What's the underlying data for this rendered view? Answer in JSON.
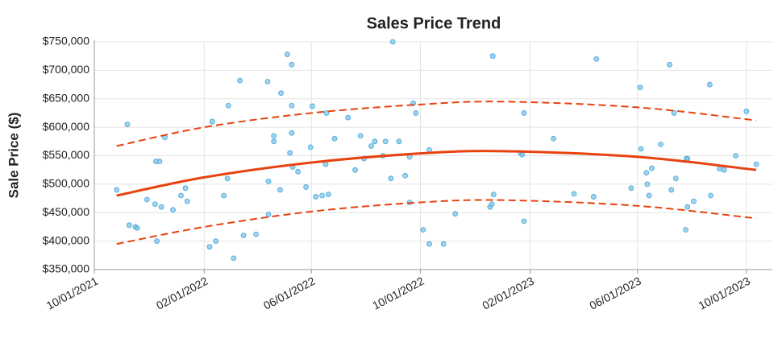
{
  "chart_data": {
    "type": "scatter",
    "title": "Sales Price Trend",
    "y_label": "Sale Price ($)",
    "grid": true,
    "xlim": [
      "2021-10-01",
      "2023-10-30"
    ],
    "xticks": [
      {
        "value": "2021-10-01",
        "label": "10/01/2021"
      },
      {
        "value": "2022-02-01",
        "label": "02/01/2022"
      },
      {
        "value": "2022-06-01",
        "label": "06/01/2022"
      },
      {
        "value": "2022-10-01",
        "label": "10/01/2022"
      },
      {
        "value": "2023-02-01",
        "label": "02/01/2023"
      },
      {
        "value": "2023-06-01",
        "label": "06/01/2023"
      },
      {
        "value": "2023-10-01",
        "label": "10/01/2023"
      }
    ],
    "ylim": [
      350000,
      750000
    ],
    "yticks": [
      {
        "value": 350000,
        "label": "$350,000"
      },
      {
        "value": 400000,
        "label": "$400,000"
      },
      {
        "value": 450000,
        "label": "$450,000"
      },
      {
        "value": 500000,
        "label": "$500,000"
      },
      {
        "value": 550000,
        "label": "$550,000"
      },
      {
        "value": 600000,
        "label": "$600,000"
      },
      {
        "value": 650000,
        "label": "$650,000"
      },
      {
        "value": 700000,
        "label": "$700,000"
      },
      {
        "value": 750000,
        "label": "$750,000"
      }
    ],
    "series": [
      {
        "type": "scatter",
        "color": "#7cc4ea",
        "x": [
          "2021-10-26",
          "2021-11-07",
          "2021-11-09",
          "2021-11-16",
          "2021-11-18",
          "2021-11-29",
          "2021-12-08",
          "2021-12-09",
          "2021-12-10",
          "2021-12-13",
          "2021-12-15",
          "2021-12-19",
          "2021-12-28",
          "2022-01-06",
          "2022-01-11",
          "2022-01-13",
          "2022-02-07",
          "2022-02-10",
          "2022-02-14",
          "2022-02-23",
          "2022-02-27",
          "2022-02-28",
          "2022-03-06",
          "2022-03-13",
          "2022-03-17",
          "2022-03-31",
          "2022-04-13",
          "2022-04-14",
          "2022-04-14",
          "2022-04-20",
          "2022-04-20",
          "2022-04-27",
          "2022-04-28",
          "2022-05-05",
          "2022-05-08",
          "2022-05-10",
          "2022-05-10",
          "2022-05-10",
          "2022-05-11",
          "2022-05-17",
          "2022-05-26",
          "2022-05-31",
          "2022-06-02",
          "2022-06-06",
          "2022-06-13",
          "2022-06-17",
          "2022-06-18",
          "2022-06-20",
          "2022-06-27",
          "2022-07-12",
          "2022-07-20",
          "2022-07-26",
          "2022-07-30",
          "2022-08-07",
          "2022-08-11",
          "2022-08-20",
          "2022-08-23",
          "2022-08-29",
          "2022-08-31",
          "2022-09-07",
          "2022-09-14",
          "2022-09-19",
          "2022-09-19",
          "2022-09-23",
          "2022-09-26",
          "2022-10-04",
          "2022-10-11",
          "2022-10-11",
          "2022-10-27",
          "2022-11-09",
          "2022-12-18",
          "2022-12-20",
          "2022-12-21",
          "2022-12-22",
          "2023-01-21",
          "2023-01-23",
          "2023-01-25",
          "2023-01-25",
          "2023-02-27",
          "2023-03-22",
          "2023-04-13",
          "2023-04-16",
          "2023-05-25",
          "2023-06-04",
          "2023-06-05",
          "2023-06-11",
          "2023-06-12",
          "2023-06-14",
          "2023-06-17",
          "2023-06-27",
          "2023-07-07",
          "2023-07-09",
          "2023-07-12",
          "2023-07-14",
          "2023-07-25",
          "2023-07-26",
          "2023-07-27",
          "2023-07-27",
          "2023-08-03",
          "2023-08-21",
          "2023-08-22",
          "2023-09-01",
          "2023-09-06",
          "2023-09-19",
          "2023-10-01",
          "2023-10-12"
        ],
        "values": [
          490000,
          605000,
          428000,
          425000,
          423000,
          473000,
          465000,
          540000,
          400000,
          540000,
          460000,
          582000,
          455000,
          480000,
          493000,
          470000,
          390000,
          610000,
          400000,
          480000,
          510000,
          638000,
          370000,
          682000,
          410000,
          412000,
          680000,
          447000,
          505000,
          585000,
          575000,
          490000,
          660000,
          728000,
          555000,
          710000,
          638000,
          590000,
          530000,
          522000,
          495000,
          565000,
          637000,
          478000,
          480000,
          535000,
          625000,
          482000,
          580000,
          617000,
          525000,
          585000,
          545000,
          567000,
          575000,
          550000,
          575000,
          510000,
          750000,
          575000,
          515000,
          548000,
          468000,
          642000,
          625000,
          420000,
          560000,
          395000,
          395000,
          448000,
          460000,
          465000,
          725000,
          482000,
          555000,
          552000,
          625000,
          435000,
          580000,
          483000,
          478000,
          720000,
          493000,
          670000,
          562000,
          520000,
          500000,
          480000,
          528000,
          570000,
          710000,
          490000,
          625000,
          510000,
          420000,
          545000,
          460000,
          545000,
          470000,
          675000,
          480000,
          527000,
          525000,
          550000,
          628000,
          535000
        ]
      },
      {
        "type": "line",
        "color": "#e8420f",
        "line_style": "solid",
        "x": [
          "2021-10-26",
          "2022-02-01",
          "2022-06-01",
          "2022-10-01",
          "2023-01-01",
          "2023-06-01",
          "2023-10-12"
        ],
        "values": [
          480000,
          512000,
          538000,
          554000,
          558000,
          548000,
          525000
        ]
      },
      {
        "type": "line",
        "color": "#e8420f",
        "line_style": "dashed",
        "x": [
          "2021-10-26",
          "2022-02-01",
          "2022-06-01",
          "2022-10-01",
          "2023-01-01",
          "2023-06-01",
          "2023-10-12"
        ],
        "values": [
          567000,
          600000,
          625000,
          640000,
          645000,
          635000,
          612000
        ]
      },
      {
        "type": "line",
        "color": "#e8420f",
        "line_style": "dashed",
        "x": [
          "2021-10-26",
          "2022-02-01",
          "2022-06-01",
          "2022-10-01",
          "2023-01-01",
          "2023-06-01",
          "2023-10-12"
        ],
        "values": [
          395000,
          425000,
          452000,
          468000,
          472000,
          462000,
          440000
        ]
      }
    ]
  }
}
